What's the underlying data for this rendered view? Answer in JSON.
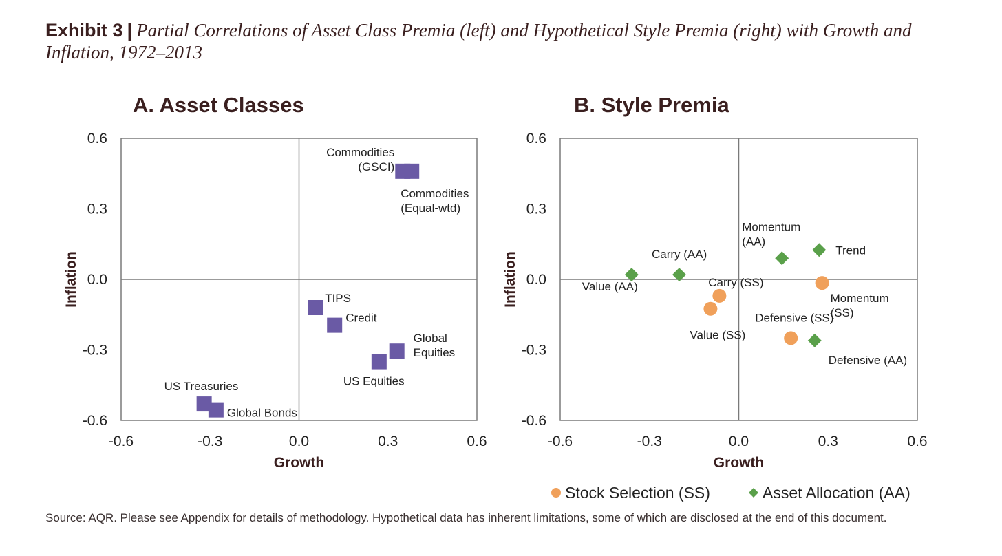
{
  "header": {
    "exhibit": "Exhibit 3",
    "separator": "|",
    "title": "Partial Correlations of Asset Class Premia (left) and Hypothetical Style Premia (right) with Growth and Inflation, 1972–2013"
  },
  "source": "Source: AQR. Please see Appendix for details of methodology.  Hypothetical data has inherent limitations, some of which are disclosed at the end of this document.",
  "colors": {
    "asset": "#6a5aa5",
    "stock_selection": "#f0a05a",
    "asset_allocation": "#5aa04a",
    "axis_text": "#3a1f1f",
    "frame": "#7a7a7a"
  },
  "chart_data": [
    {
      "type": "scatter",
      "title": "A. Asset Classes",
      "xlabel": "Growth",
      "ylabel": "Inflation",
      "xlim": [
        -0.6,
        0.6
      ],
      "ylim": [
        -0.6,
        0.6
      ],
      "xticks": [
        "-0.6",
        "-0.3",
        "0.0",
        "0.3",
        "0.6"
      ],
      "yticks": [
        "0.6",
        "0.3",
        "0.0",
        "-0.3",
        "-0.6"
      ],
      "series": [
        {
          "name": "Asset Classes",
          "marker": "square",
          "points": [
            {
              "label": "Commodities (GSCI)",
              "lines": [
                "Commodities",
                "(GSCI)"
              ],
              "x": 0.35,
              "y": 0.46
            },
            {
              "label": "Commodities (Equal-wtd)",
              "lines": [
                "Commodities",
                "(Equal-wtd)"
              ],
              "x": 0.38,
              "y": 0.46
            },
            {
              "label": "TIPS",
              "lines": [
                "TIPS"
              ],
              "x": 0.055,
              "y": -0.12
            },
            {
              "label": "Credit",
              "lines": [
                "Credit"
              ],
              "x": 0.12,
              "y": -0.195
            },
            {
              "label": "Global Equities",
              "lines": [
                "Global",
                "Equities"
              ],
              "x": 0.33,
              "y": -0.305
            },
            {
              "label": "US Equities",
              "lines": [
                "US Equities"
              ],
              "x": 0.27,
              "y": -0.35
            },
            {
              "label": "US Treasuries",
              "lines": [
                "US Treasuries"
              ],
              "x": -0.32,
              "y": -0.53
            },
            {
              "label": "Global Bonds",
              "lines": [
                "Global Bonds"
              ],
              "x": -0.28,
              "y": -0.555
            }
          ]
        }
      ]
    },
    {
      "type": "scatter",
      "title": "B. Style Premia",
      "xlabel": "Growth",
      "ylabel": "Inflation",
      "xlim": [
        -0.6,
        0.6
      ],
      "ylim": [
        -0.6,
        0.6
      ],
      "xticks": [
        "-0.6",
        "-0.3",
        "0.0",
        "0.3",
        "0.6"
      ],
      "yticks": [
        "0.6",
        "0.3",
        "0.0",
        "-0.3",
        "-0.6"
      ],
      "legend": {
        "position": "bottom-right",
        "entries": [
          "Stock Selection (SS)",
          "Asset Allocation (AA)"
        ]
      },
      "series": [
        {
          "name": "Stock Selection (SS)",
          "marker": "circle",
          "points": [
            {
              "label": "Carry (SS)",
              "lines": [
                "Carry (SS)"
              ],
              "x": -0.065,
              "y": -0.07
            },
            {
              "label": "Value (SS)",
              "lines": [
                "Value (SS)"
              ],
              "x": -0.095,
              "y": -0.125
            },
            {
              "label": "Momentum (SS)",
              "lines": [
                "Momentum",
                "(SS)"
              ],
              "x": 0.28,
              "y": -0.015
            },
            {
              "label": "Defensive (SS)",
              "lines": [
                "Defensive  (SS)"
              ],
              "x": 0.175,
              "y": -0.25
            }
          ]
        },
        {
          "name": "Asset Allocation (AA)",
          "marker": "diamond",
          "points": [
            {
              "label": "Value (AA)",
              "lines": [
                "Value (AA)"
              ],
              "x": -0.36,
              "y": 0.02
            },
            {
              "label": "Carry (AA)",
              "lines": [
                "Carry (AA)"
              ],
              "x": -0.2,
              "y": 0.02
            },
            {
              "label": "Momentum (AA)",
              "lines": [
                "Momentum",
                "(AA)"
              ],
              "x": 0.145,
              "y": 0.09
            },
            {
              "label": "Trend",
              "lines": [
                "Trend"
              ],
              "x": 0.27,
              "y": 0.125
            },
            {
              "label": "Defensive (AA)",
              "lines": [
                "Defensive  (AA)"
              ],
              "x": 0.255,
              "y": -0.26
            }
          ]
        }
      ]
    }
  ]
}
